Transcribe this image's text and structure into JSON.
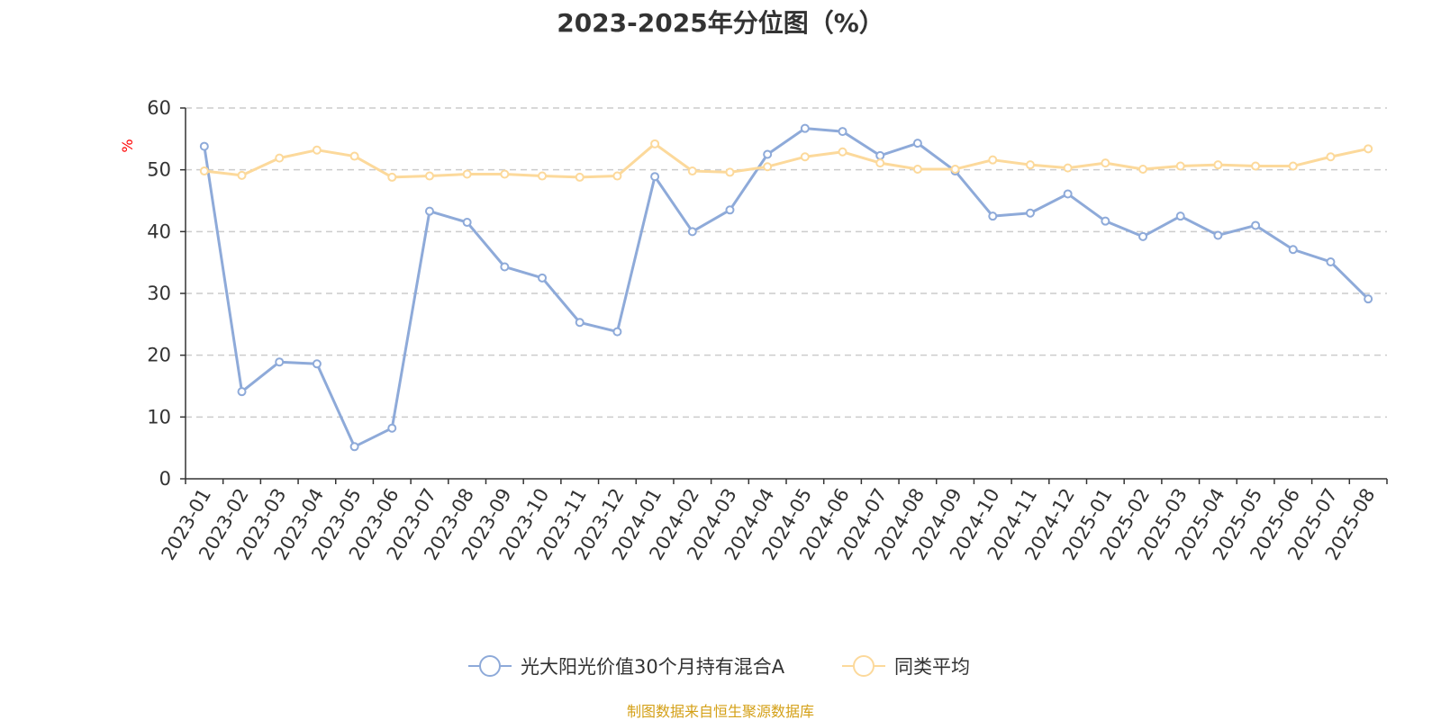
{
  "chart_data": {
    "type": "line",
    "title": "2023-2025年分位图（%）",
    "y_unit": "%",
    "categories": [
      "2023-01",
      "2023-02",
      "2023-03",
      "2023-04",
      "2023-05",
      "2023-06",
      "2023-07",
      "2023-08",
      "2023-09",
      "2023-10",
      "2023-11",
      "2023-12",
      "2024-01",
      "2024-02",
      "2024-03",
      "2024-04",
      "2024-05",
      "2024-06",
      "2024-07",
      "2024-08",
      "2024-09",
      "2024-10",
      "2024-11",
      "2024-12",
      "2025-01",
      "2025-02",
      "2025-03",
      "2025-04",
      "2025-05",
      "2025-06",
      "2025-07",
      "2025-08"
    ],
    "ylim": [
      0,
      60
    ],
    "yticks": [
      0,
      10,
      20,
      30,
      40,
      50,
      60
    ],
    "grid": true,
    "legend_position": "bottom",
    "series": [
      {
        "name": "光大阳光价值30个月持有混合A",
        "color": "#8eaad9",
        "values": [
          53.8,
          14.1,
          18.9,
          18.6,
          5.2,
          8.2,
          43.3,
          41.5,
          34.3,
          32.5,
          25.3,
          23.8,
          48.9,
          40.0,
          43.5,
          52.5,
          56.7,
          56.2,
          52.3,
          54.3,
          49.8,
          42.5,
          43.0,
          46.1,
          41.7,
          39.2,
          42.5,
          39.4,
          41.0,
          37.1,
          35.1,
          29.1
        ]
      },
      {
        "name": "同类平均",
        "color": "#fcd99b",
        "values": [
          49.8,
          49.1,
          51.9,
          53.2,
          52.2,
          48.8,
          49.0,
          49.3,
          49.3,
          49.0,
          48.8,
          49.0,
          54.2,
          49.8,
          49.6,
          50.5,
          52.1,
          52.9,
          51.1,
          50.1,
          50.1,
          51.6,
          50.8,
          50.3,
          51.1,
          50.1,
          50.6,
          50.8,
          50.6,
          50.6,
          52.1,
          53.4
        ]
      }
    ]
  },
  "source_note": "制图数据来自恒生聚源数据库"
}
